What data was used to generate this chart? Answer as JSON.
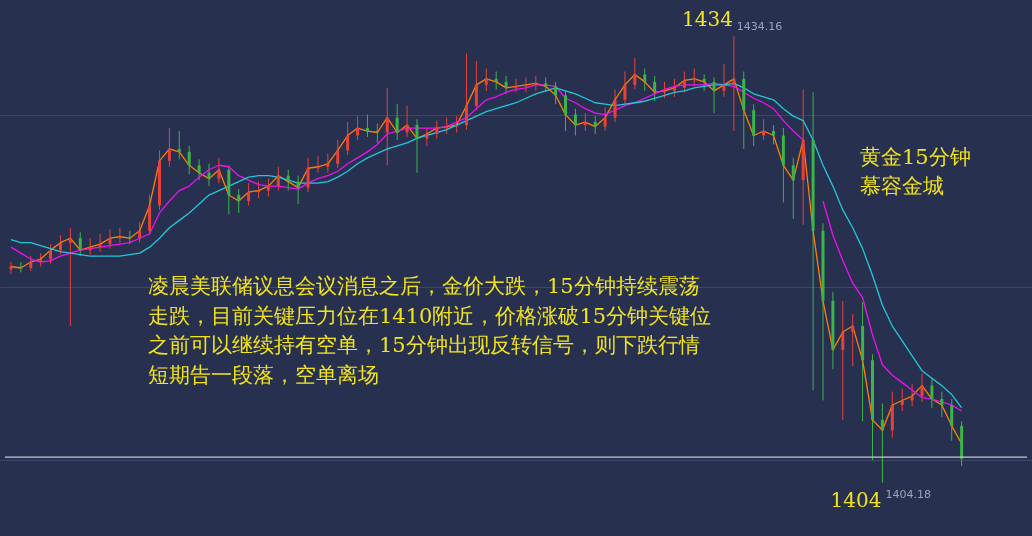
{
  "chart_data": {
    "type": "candlestick",
    "categories": [
      null,
      null,
      null,
      null,
      null,
      null,
      null,
      null,
      null,
      null,
      null,
      null,
      null,
      null,
      null,
      null,
      null,
      null,
      null,
      null,
      null,
      null,
      null,
      null,
      null,
      null,
      null,
      null,
      null,
      null,
      null,
      null,
      null,
      null,
      null,
      null,
      null,
      null,
      null,
      null,
      null,
      null,
      null,
      null,
      null,
      null,
      null,
      null,
      null,
      null,
      null,
      null,
      null,
      null,
      null,
      null,
      null,
      null,
      null,
      null,
      null,
      null,
      null,
      null,
      null,
      null,
      null,
      null,
      null,
      null,
      null,
      null,
      null,
      null,
      null,
      null,
      null,
      null,
      null,
      null,
      null,
      null,
      null,
      null,
      null,
      null,
      null,
      null,
      null,
      null,
      null,
      null,
      null,
      null,
      null,
      null,
      null
    ],
    "ohlc": [
      [
        1418.5,
        1419.0,
        1418.2,
        1418.7
      ],
      [
        1418.7,
        1419.0,
        1418.3,
        1418.6
      ],
      [
        1418.6,
        1419.4,
        1418.4,
        1419.0
      ],
      [
        1419.0,
        1419.6,
        1418.7,
        1419.2
      ],
      [
        1419.2,
        1420.2,
        1418.9,
        1419.8
      ],
      [
        1419.8,
        1420.8,
        1419.5,
        1420.3
      ],
      [
        1420.3,
        1421.3,
        1414.7,
        1420.6
      ],
      [
        1420.6,
        1421.0,
        1419.4,
        1419.8
      ],
      [
        1419.8,
        1420.6,
        1419.5,
        1420.0
      ],
      [
        1420.0,
        1420.9,
        1419.7,
        1420.2
      ],
      [
        1420.2,
        1421.2,
        1419.9,
        1420.6
      ],
      [
        1420.6,
        1421.3,
        1420.3,
        1420.7
      ],
      [
        1420.7,
        1421.1,
        1420.2,
        1420.6
      ],
      [
        1420.6,
        1421.7,
        1420.3,
        1421.1
      ],
      [
        1421.1,
        1423.5,
        1420.8,
        1422.8
      ],
      [
        1422.8,
        1426.5,
        1422.5,
        1425.8
      ],
      [
        1425.8,
        1428.0,
        1425.4,
        1426.6
      ],
      [
        1426.6,
        1427.8,
        1425.9,
        1426.4
      ],
      [
        1426.4,
        1426.8,
        1424.9,
        1425.5
      ],
      [
        1425.5,
        1425.9,
        1424.5,
        1425.0
      ],
      [
        1425.0,
        1425.6,
        1424.1,
        1424.6
      ],
      [
        1424.6,
        1426.0,
        1424.3,
        1425.2
      ],
      [
        1425.2,
        1425.5,
        1422.2,
        1423.5
      ],
      [
        1423.5,
        1423.9,
        1422.3,
        1423.1
      ],
      [
        1423.1,
        1424.3,
        1422.8,
        1423.7
      ],
      [
        1423.7,
        1424.4,
        1423.3,
        1423.8
      ],
      [
        1423.8,
        1424.6,
        1423.4,
        1424.1
      ],
      [
        1424.1,
        1425.4,
        1423.8,
        1424.8
      ],
      [
        1424.8,
        1425.2,
        1423.8,
        1424.4
      ],
      [
        1424.4,
        1424.8,
        1422.9,
        1424.0
      ],
      [
        1424.0,
        1426.0,
        1423.7,
        1425.3
      ],
      [
        1425.3,
        1426.1,
        1425.0,
        1425.4
      ],
      [
        1425.4,
        1426.3,
        1425.0,
        1425.6
      ],
      [
        1425.6,
        1427.2,
        1425.3,
        1426.5
      ],
      [
        1426.5,
        1428.4,
        1426.2,
        1427.5
      ],
      [
        1427.5,
        1428.8,
        1427.2,
        1428.0
      ],
      [
        1428.0,
        1428.9,
        1427.4,
        1427.8
      ],
      [
        1427.8,
        1428.3,
        1427.0,
        1427.7
      ],
      [
        1427.7,
        1430.7,
        1425.5,
        1428.7
      ],
      [
        1428.7,
        1429.6,
        1427.2,
        1427.7
      ],
      [
        1427.7,
        1429.5,
        1427.4,
        1428.2
      ],
      [
        1428.2,
        1428.6,
        1425.0,
        1427.3
      ],
      [
        1427.3,
        1428.0,
        1426.8,
        1427.6
      ],
      [
        1427.6,
        1428.5,
        1427.3,
        1428.0
      ],
      [
        1428.0,
        1428.7,
        1427.6,
        1428.1
      ],
      [
        1428.1,
        1428.8,
        1427.7,
        1428.2
      ],
      [
        1428.2,
        1433.0,
        1427.9,
        1429.5
      ],
      [
        1429.5,
        1432.5,
        1429.2,
        1430.9
      ],
      [
        1430.9,
        1432.0,
        1430.5,
        1431.3
      ],
      [
        1431.3,
        1431.8,
        1430.6,
        1431.1
      ],
      [
        1431.1,
        1431.5,
        1430.3,
        1430.7
      ],
      [
        1430.7,
        1431.3,
        1430.4,
        1430.8
      ],
      [
        1430.8,
        1431.4,
        1430.4,
        1430.9
      ],
      [
        1430.9,
        1431.5,
        1430.5,
        1431.0
      ],
      [
        1431.0,
        1431.4,
        1430.4,
        1430.8
      ],
      [
        1430.8,
        1431.1,
        1429.6,
        1430.2
      ],
      [
        1430.2,
        1430.5,
        1427.8,
        1428.9
      ],
      [
        1428.9,
        1429.3,
        1427.5,
        1428.2
      ],
      [
        1428.2,
        1429.0,
        1427.8,
        1428.4
      ],
      [
        1428.4,
        1428.8,
        1427.6,
        1428.1
      ],
      [
        1428.1,
        1429.4,
        1427.8,
        1428.7
      ],
      [
        1428.7,
        1430.6,
        1428.4,
        1429.9
      ],
      [
        1429.9,
        1431.8,
        1429.6,
        1430.9
      ],
      [
        1430.9,
        1432.7,
        1430.6,
        1431.6
      ],
      [
        1431.6,
        1432.0,
        1430.5,
        1431.1
      ],
      [
        1431.1,
        1431.5,
        1429.8,
        1430.4
      ],
      [
        1430.4,
        1431.1,
        1430.0,
        1430.5
      ],
      [
        1430.5,
        1431.3,
        1430.1,
        1430.7
      ],
      [
        1430.7,
        1431.8,
        1430.4,
        1431.2
      ],
      [
        1431.2,
        1432.0,
        1430.8,
        1431.3
      ],
      [
        1431.3,
        1431.6,
        1430.5,
        1431.1
      ],
      [
        1431.1,
        1431.4,
        1429.0,
        1430.5
      ],
      [
        1430.5,
        1432.3,
        1430.1,
        1430.9
      ],
      [
        1430.9,
        1434.16,
        1427.8,
        1431.3
      ],
      [
        1431.3,
        1431.8,
        1426.6,
        1429.2
      ],
      [
        1429.2,
        1429.6,
        1426.8,
        1427.5
      ],
      [
        1427.5,
        1428.6,
        1427.2,
        1427.8
      ],
      [
        1427.8,
        1428.2,
        1426.9,
        1427.5
      ],
      [
        1427.5,
        1428.0,
        1423.0,
        1425.5
      ],
      [
        1425.5,
        1426.0,
        1421.9,
        1424.5
      ],
      [
        1424.5,
        1430.6,
        1421.5,
        1427.2
      ],
      [
        1427.2,
        1430.4,
        1410.4,
        1421.1
      ],
      [
        1421.1,
        1421.6,
        1409.7,
        1416.4
      ],
      [
        1416.4,
        1417.0,
        1411.8,
        1413.1
      ],
      [
        1413.1,
        1416.4,
        1408.4,
        1414.3
      ],
      [
        1414.3,
        1415.5,
        1412.0,
        1414.7
      ],
      [
        1414.7,
        1416.3,
        1408.3,
        1412.4
      ],
      [
        1412.4,
        1412.8,
        1405.7,
        1408.4
      ],
      [
        1408.4,
        1409.5,
        1404.18,
        1407.7
      ],
      [
        1407.7,
        1410.3,
        1407.2,
        1409.4
      ],
      [
        1409.4,
        1410.5,
        1409.0,
        1409.7
      ],
      [
        1409.7,
        1410.8,
        1409.3,
        1410.0
      ],
      [
        1410.0,
        1411.5,
        1409.6,
        1410.7
      ],
      [
        1410.7,
        1411.2,
        1409.2,
        1409.8
      ],
      [
        1409.8,
        1410.3,
        1408.6,
        1409.4
      ],
      [
        1409.4,
        1409.8,
        1407.0,
        1408.0
      ],
      [
        1408.0,
        1408.3,
        1405.3,
        1405.8
      ]
    ],
    "colors": [
      "#e8413a",
      "#3cb44a",
      "#e8413a",
      "#e8413a",
      "#e8413a",
      "#e8413a",
      "#e8413a",
      "#3cb44a",
      "#e8413a",
      "#e8413a",
      "#e8413a",
      "#e8413a",
      "#3cb44a",
      "#e8413a",
      "#e8413a",
      "#e8413a",
      "#e8413a",
      "#3cb44a",
      "#3cb44a",
      "#3cb44a",
      "#3cb44a",
      "#e8413a",
      "#3cb44a",
      "#3cb44a",
      "#e8413a",
      "#e8413a",
      "#e8413a",
      "#e8413a",
      "#3cb44a",
      "#3cb44a",
      "#e8413a",
      "#e8413a",
      "#e8413a",
      "#e8413a",
      "#e8413a",
      "#e8413a",
      "#3cb44a",
      "#3cb44a",
      "#e8413a",
      "#3cb44a",
      "#e8413a",
      "#3cb44a",
      "#e8413a",
      "#e8413a",
      "#e8413a",
      "#e8413a",
      "#e8413a",
      "#e8413a",
      "#e8413a",
      "#3cb44a",
      "#3cb44a",
      "#e8413a",
      "#e8413a",
      "#e8413a",
      "#3cb44a",
      "#3cb44a",
      "#3cb44a",
      "#3cb44a",
      "#e8413a",
      "#3cb44a",
      "#e8413a",
      "#e8413a",
      "#e8413a",
      "#e8413a",
      "#3cb44a",
      "#3cb44a",
      "#e8413a",
      "#e8413a",
      "#e8413a",
      "#e8413a",
      "#3cb44a",
      "#3cb44a",
      "#e8413a",
      "#e8413a",
      "#3cb44a",
      "#3cb44a",
      "#e8413a",
      "#3cb44a",
      "#3cb44a",
      "#3cb44a",
      "#e8413a",
      "#3cb44a",
      "#3cb44a",
      "#3cb44a",
      "#e8413a",
      "#e8413a",
      "#3cb44a",
      "#3cb44a",
      "#3cb44a",
      "#e8413a",
      "#e8413a",
      "#e8413a",
      "#e8413a",
      "#3cb44a",
      "#3cb44a",
      "#3cb44a",
      "#3cb44a"
    ],
    "series": [
      {
        "type": "line",
        "color": "#ff7f00",
        "values": [
          1418.7,
          1418.6,
          1419.0,
          1419.2,
          1419.8,
          1420.3,
          1420.6,
          1419.8,
          1420.0,
          1420.2,
          1420.6,
          1420.7,
          1420.6,
          1421.1,
          1422.8,
          1425.8,
          1426.6,
          1426.4,
          1425.5,
          1425.0,
          1424.6,
          1425.2,
          1423.5,
          1423.1,
          1423.7,
          1423.8,
          1424.1,
          1424.8,
          1424.4,
          1424.0,
          1425.3,
          1425.4,
          1425.6,
          1426.5,
          1427.5,
          1428.0,
          1427.8,
          1427.7,
          1428.7,
          1427.7,
          1428.2,
          1427.3,
          1427.6,
          1428.0,
          1428.1,
          1428.2,
          1429.5,
          1430.9,
          1431.3,
          1431.1,
          1430.7,
          1430.8,
          1430.9,
          1431.0,
          1430.8,
          1430.2,
          1428.9,
          1428.2,
          1428.4,
          1428.1,
          1428.7,
          1429.9,
          1430.9,
          1431.6,
          1431.1,
          1430.4,
          1430.5,
          1430.7,
          1431.2,
          1431.3,
          1431.1,
          1430.5,
          1430.9,
          1431.3,
          1429.2,
          1427.5,
          1427.8,
          1427.5,
          1425.5,
          1424.5,
          1427.2,
          1421.1,
          1416.4,
          1413.1,
          1414.3,
          1414.7,
          1412.4,
          1408.4,
          1407.7,
          1409.4,
          1409.7,
          1410.0,
          1410.7,
          1409.8,
          1409.4,
          1408.0,
          1406.8
        ]
      },
      {
        "type": "line",
        "color": "#f010f0",
        "values": [
          1420.0,
          1419.6,
          1419.2,
          1419.0,
          1419.1,
          1419.4,
          1419.6,
          1419.8,
          1419.9,
          1420.0,
          1420.1,
          1420.2,
          1420.3,
          1420.6,
          1420.9,
          1422.3,
          1423.1,
          1423.8,
          1424.1,
          1424.7,
          1425.2,
          1425.5,
          1425.4,
          1424.8,
          1424.5,
          1424.2,
          1424.1,
          1424.1,
          1424.0,
          1423.9,
          1424.3,
          1424.6,
          1424.8,
          1425.1,
          1425.6,
          1426.0,
          1426.4,
          1426.9,
          1427.6,
          1427.8,
          1428.0,
          1428.0,
          1428.0,
          1428.0,
          1428.1,
          1428.4,
          1428.7,
          1429.3,
          1429.9,
          1430.1,
          1430.4,
          1430.6,
          1430.7,
          1430.9,
          1430.9,
          1430.8,
          1430.0,
          1429.7,
          1429.3,
          1429.0,
          1428.9,
          1429.2,
          1429.5,
          1429.7,
          1430.0,
          1430.3,
          1430.6,
          1430.8,
          1430.9,
          1430.9,
          1430.9,
          1431.0,
          1430.9,
          1430.8,
          1430.4,
          1430.0,
          1429.7,
          1429.3,
          1428.5,
          1427.8,
          1427.2,
          null,
          1423.1,
          1420.8,
          1419.1,
          1417.6,
          1416.6,
          1414.1,
          1412.1,
          1411.4,
          1410.9,
          1410.4,
          1409.9,
          1409.8,
          1409.6,
          1409.4,
          1409.0
        ]
      },
      {
        "type": "line",
        "color": "#20c8d8",
        "values": [
          1420.5,
          1420.3,
          1420.3,
          1420.1,
          1419.9,
          1419.7,
          1419.6,
          1419.5,
          1419.4,
          1419.4,
          1419.4,
          1419.4,
          1419.5,
          1419.6,
          1420.0,
          1420.6,
          1421.3,
          1421.8,
          1422.3,
          1422.9,
          1423.5,
          1423.8,
          1424.1,
          1424.4,
          1424.7,
          1424.8,
          1424.8,
          1424.7,
          1424.5,
          1424.3,
          1424.3,
          1424.3,
          1424.4,
          1424.7,
          1425.1,
          1425.6,
          1426.0,
          1426.3,
          1426.6,
          1426.8,
          1427.0,
          1427.3,
          1427.5,
          1427.7,
          1427.9,
          1428.2,
          1428.5,
          1428.8,
          1429.1,
          1429.3,
          1429.5,
          1429.7,
          1430.0,
          1430.3,
          1430.5,
          1430.7,
          1430.5,
          1430.3,
          1430.0,
          1429.7,
          1429.6,
          1429.5,
          1429.6,
          1429.7,
          1429.8,
          1430.0,
          1430.2,
          1430.4,
          1430.5,
          1430.7,
          1430.8,
          1430.9,
          1430.9,
          1431.0,
          1430.7,
          1430.3,
          1430.1,
          1429.9,
          1429.3,
          1428.8,
          1428.5,
          1427.2,
          1425.5,
          1424.1,
          1422.5,
          1421.3,
          1419.9,
          1418.1,
          1416.1,
          1414.7,
          1413.7,
          1412.7,
          1411.7,
          1411.2,
          1410.7,
          1410.1,
          1409.2
        ]
      }
    ],
    "ylim": [
      1400.6,
      1436.6
    ],
    "yticks": [
      {
        "value": 1405.7,
        "label": null
      },
      {
        "value": 1417.3,
        "label": null
      },
      {
        "value": 1428.9,
        "label": null
      }
    ],
    "grid": "y",
    "ref_lines": [
      {
        "axis": "y",
        "value": 1405.9,
        "color": "#c8c8c8"
      }
    ],
    "annotations": [
      "凌晨美联储议息会议消息之后，金价大跌，15分钟持续震荡走跌，目前关键压力位在1410附近，价格涨破15分钟关键位之前可以继续持有空单，15分钟出现反转信号，则下跌行情短期告一段落，空单离场",
      "黄金15分钟",
      "慕容金城",
      "1434",
      "1434.16",
      "1404",
      "1404.18"
    ]
  }
}
